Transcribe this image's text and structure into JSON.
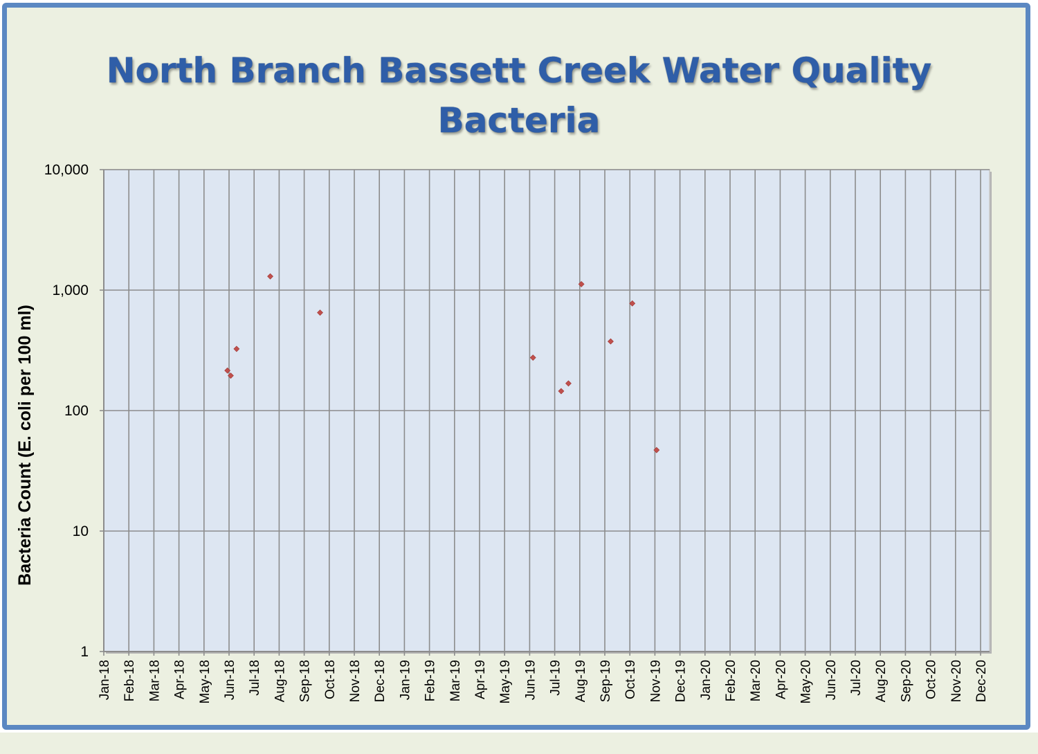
{
  "chart_data": {
    "type": "scatter",
    "title": [
      "North Branch Bassett Creek Water Quality",
      "Bacteria"
    ],
    "xlabel": "",
    "ylabel": "Bacteria Count (E. coli per 100 ml)",
    "y_scale": "log",
    "ylim": [
      1,
      10000
    ],
    "y_ticks": [
      "10,000",
      "1,000",
      "100",
      "10",
      "1"
    ],
    "x_ticks": [
      "Jan-18",
      "Feb-18",
      "Mar-18",
      "Apr-18",
      "May-18",
      "Jun-18",
      "Jul-18",
      "Aug-18",
      "Sep-18",
      "Oct-18",
      "Nov-18",
      "Dec-18",
      "Jan-19",
      "Feb-19",
      "Mar-19",
      "Apr-19",
      "May-19",
      "Jun-19",
      "Jul-19",
      "Aug-19",
      "Sep-19",
      "Oct-19",
      "Nov-19",
      "Dec-19",
      "Jan-20",
      "Feb-20",
      "Mar-20",
      "Apr-20",
      "May-20",
      "Jun-20",
      "Jul-20",
      "Aug-20",
      "Sep-20",
      "Oct-20",
      "Nov-20",
      "Dec-20"
    ],
    "xlim": [
      "2018-01-01",
      "2020-12-01"
    ],
    "grid": true,
    "marker_color": "#c0504d",
    "plot_background": "#dde6f2",
    "series": [
      {
        "points": [
          {
            "x": "2018-05-30",
            "y": 215
          },
          {
            "x": "2018-06-03",
            "y": 195
          },
          {
            "x": "2018-06-10",
            "y": 325
          },
          {
            "x": "2018-07-21",
            "y": 1300
          },
          {
            "x": "2018-09-20",
            "y": 650
          },
          {
            "x": "2019-06-05",
            "y": 275
          },
          {
            "x": "2019-07-09",
            "y": 145
          },
          {
            "x": "2019-07-18",
            "y": 168
          },
          {
            "x": "2019-08-03",
            "y": 1120
          },
          {
            "x": "2019-09-08",
            "y": 375
          },
          {
            "x": "2019-10-04",
            "y": 775
          },
          {
            "x": "2019-11-03",
            "y": 47
          }
        ]
      }
    ]
  }
}
